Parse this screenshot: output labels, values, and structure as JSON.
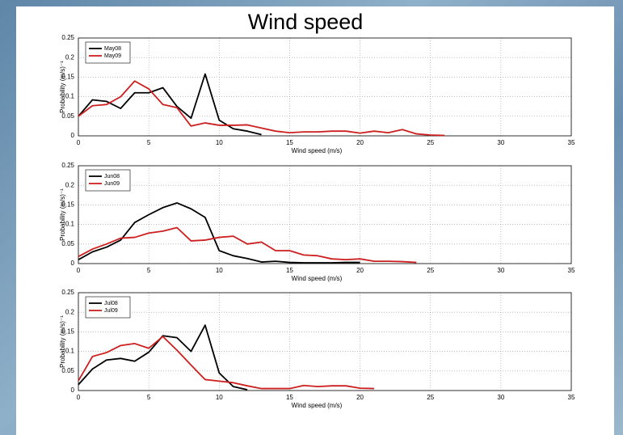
{
  "title": "Wind speed",
  "chart_data": [
    {
      "type": "line",
      "xlabel": "Wind speed (m/s)",
      "ylabel": "Probability (m/s)⁻¹",
      "xlim": [
        0,
        35
      ],
      "ylim": [
        0,
        0.25
      ],
      "xticks": [
        0,
        5,
        10,
        15,
        20,
        25,
        30,
        35
      ],
      "yticks": [
        0,
        0.05,
        0.1,
        0.15,
        0.2,
        0.25
      ],
      "grid": true,
      "legend": "upper left",
      "series": [
        {
          "name": "May08",
          "color": "#000000",
          "x": [
            0,
            1,
            2,
            3,
            4,
            5,
            6,
            7,
            8,
            9,
            10,
            11,
            12,
            13
          ],
          "values": [
            0.05,
            0.092,
            0.088,
            0.07,
            0.11,
            0.11,
            0.123,
            0.075,
            0.045,
            0.158,
            0.04,
            0.018,
            0.012,
            0.003
          ]
        },
        {
          "name": "May09",
          "color": "#cc1f1f",
          "x": [
            0,
            1,
            2,
            3,
            4,
            5,
            6,
            7,
            8,
            9,
            10,
            11,
            12,
            13,
            14,
            15,
            16,
            17,
            18,
            19,
            20,
            21,
            22,
            23,
            24,
            25,
            26
          ],
          "values": [
            0.05,
            0.077,
            0.08,
            0.1,
            0.14,
            0.12,
            0.08,
            0.072,
            0.025,
            0.033,
            0.027,
            0.027,
            0.028,
            0.02,
            0.012,
            0.008,
            0.01,
            0.01,
            0.012,
            0.012,
            0.007,
            0.012,
            0.008,
            0.016,
            0.005,
            0.002,
            0.001
          ]
        }
      ]
    },
    {
      "type": "line",
      "xlabel": "Wind speed (m/s)",
      "ylabel": "Probability (m/s)⁻¹",
      "xlim": [
        0,
        35
      ],
      "ylim": [
        0,
        0.25
      ],
      "xticks": [
        0,
        5,
        10,
        15,
        20,
        25,
        30,
        35
      ],
      "yticks": [
        0,
        0.05,
        0.1,
        0.15,
        0.2,
        0.25
      ],
      "grid": true,
      "legend": "upper left",
      "series": [
        {
          "name": "Jun08",
          "color": "#000000",
          "x": [
            0,
            1,
            2,
            3,
            4,
            5,
            6,
            7,
            8,
            9,
            10,
            11,
            12,
            13,
            14,
            15,
            16,
            17,
            18,
            19,
            20
          ],
          "values": [
            0.01,
            0.03,
            0.042,
            0.06,
            0.105,
            0.125,
            0.143,
            0.155,
            0.14,
            0.118,
            0.033,
            0.02,
            0.013,
            0.004,
            0.006,
            0.003,
            0.002,
            0.002,
            0.002,
            0.003,
            0.003
          ]
        },
        {
          "name": "Jun09",
          "color": "#cc1f1f",
          "x": [
            0,
            1,
            2,
            3,
            4,
            5,
            6,
            7,
            8,
            9,
            10,
            11,
            12,
            13,
            14,
            15,
            16,
            17,
            18,
            19,
            20,
            21,
            22,
            23,
            24
          ],
          "values": [
            0.018,
            0.037,
            0.05,
            0.065,
            0.067,
            0.078,
            0.083,
            0.092,
            0.058,
            0.06,
            0.067,
            0.07,
            0.05,
            0.055,
            0.033,
            0.033,
            0.022,
            0.02,
            0.012,
            0.01,
            0.012,
            0.006,
            0.006,
            0.005,
            0.003
          ]
        }
      ]
    },
    {
      "type": "line",
      "xlabel": "Wind speed (m/s)",
      "ylabel": "Probability (m/s)⁻¹",
      "xlim": [
        0,
        35
      ],
      "ylim": [
        0,
        0.25
      ],
      "xticks": [
        0,
        5,
        10,
        15,
        20,
        25,
        30,
        35
      ],
      "yticks": [
        0,
        0.05,
        0.1,
        0.15,
        0.2,
        0.25
      ],
      "grid": true,
      "legend": "upper left",
      "series": [
        {
          "name": "Jul08",
          "color": "#000000",
          "x": [
            0,
            1,
            2,
            3,
            4,
            5,
            6,
            7,
            8,
            9,
            10,
            11,
            12
          ],
          "values": [
            0.015,
            0.055,
            0.078,
            0.082,
            0.075,
            0.098,
            0.14,
            0.135,
            0.1,
            0.167,
            0.045,
            0.01,
            0.002
          ]
        },
        {
          "name": "Jul09",
          "color": "#cc1f1f",
          "x": [
            0,
            1,
            2,
            3,
            4,
            5,
            6,
            7,
            8,
            9,
            10,
            11,
            12,
            13,
            14,
            15,
            16,
            17,
            18,
            19,
            20,
            21
          ],
          "values": [
            0.025,
            0.087,
            0.097,
            0.115,
            0.12,
            0.108,
            0.138,
            0.103,
            0.065,
            0.028,
            0.024,
            0.02,
            0.012,
            0.005,
            0.005,
            0.005,
            0.013,
            0.01,
            0.012,
            0.012,
            0.006,
            0.005
          ]
        }
      ]
    }
  ]
}
